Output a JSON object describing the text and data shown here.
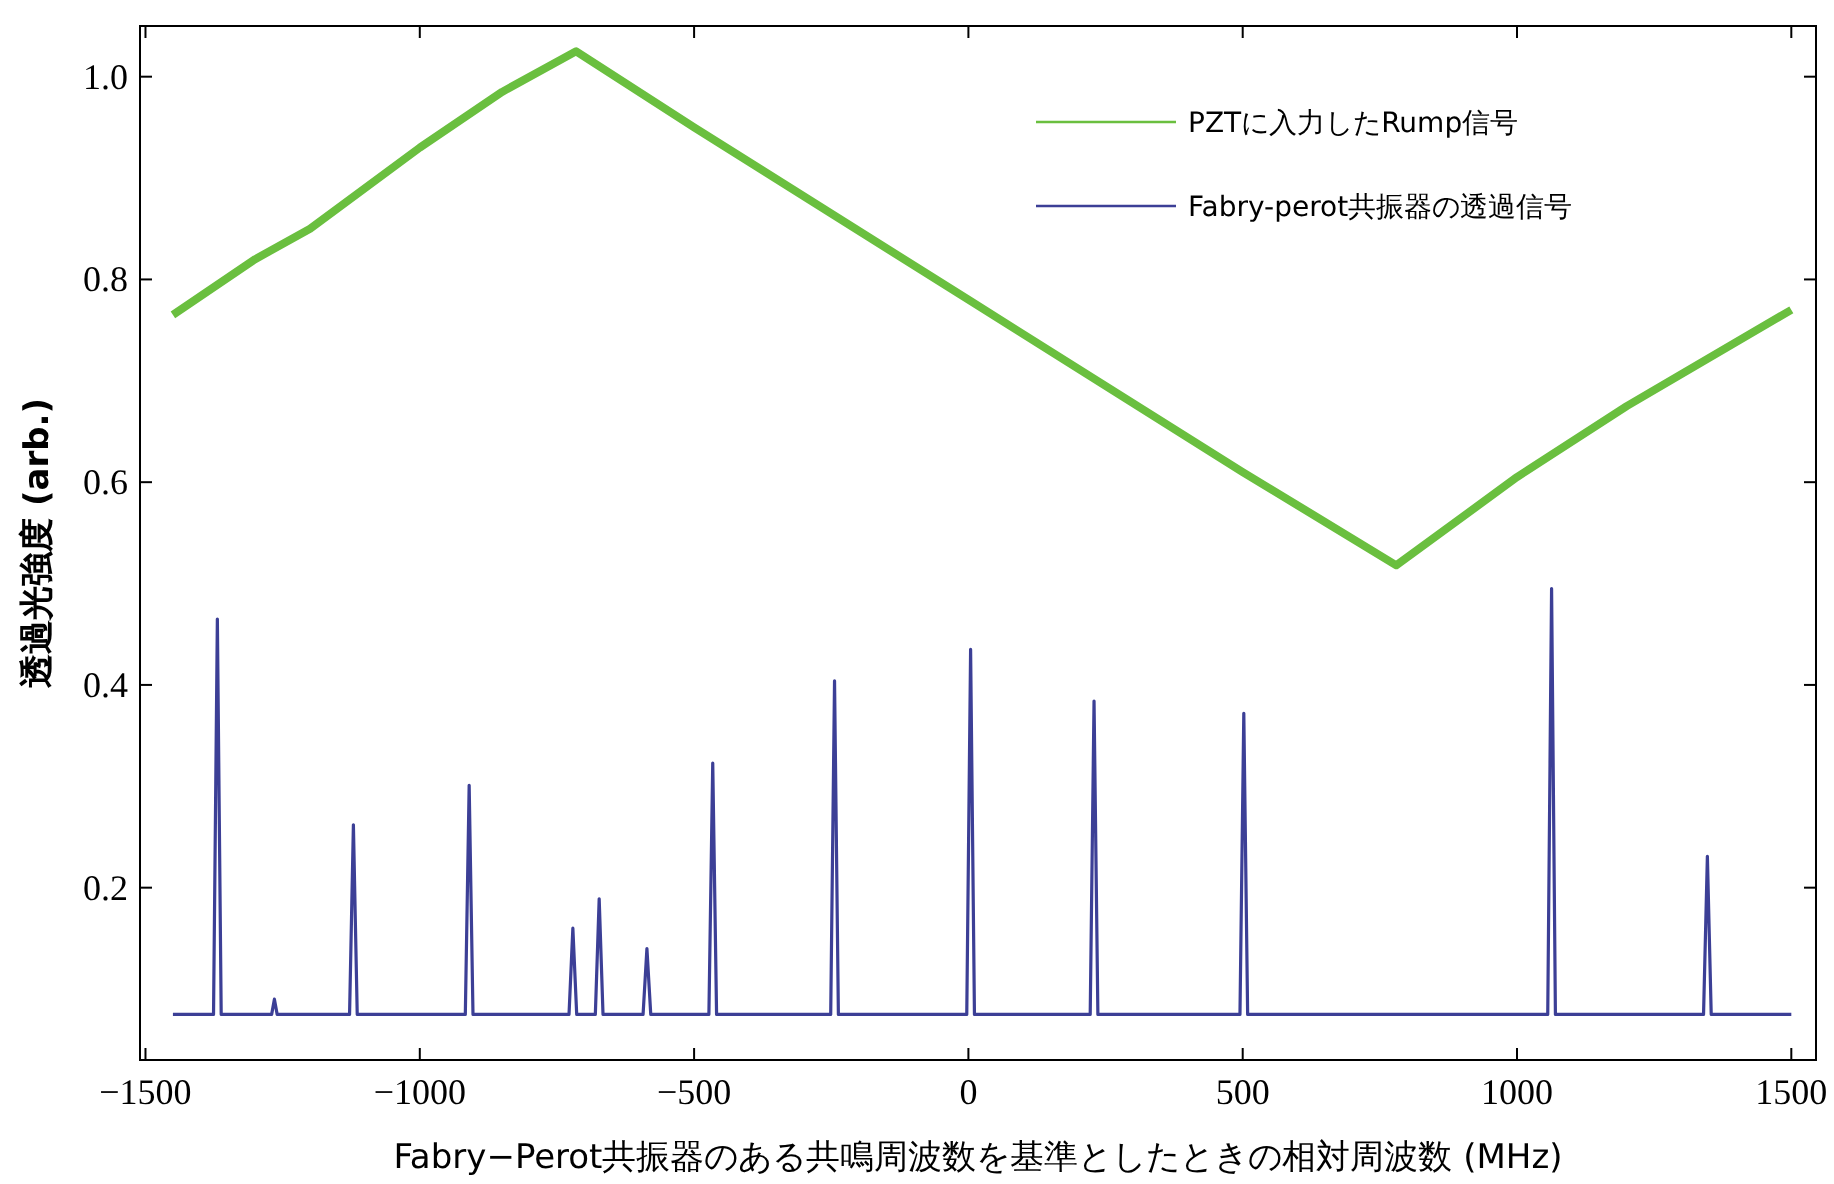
{
  "chart_data": {
    "type": "line",
    "xlabel": "Fabry−Perot共振器のある共鳴周波数を基準としたときの相対周波数 (MHz)",
    "ylabel": "透過光強度 (arb.)",
    "xlim": [
      -1510,
      1545
    ],
    "ylim": [
      0.03,
      1.05
    ],
    "xticks": [
      {
        "value": -1500,
        "label": "−1500"
      },
      {
        "value": -1000,
        "label": "−1000"
      },
      {
        "value": -500,
        "label": "−500"
      },
      0,
      500,
      1000,
      1500
    ],
    "yticks": [
      0.2,
      0.4,
      0.6,
      0.8,
      {
        "value": 1.0,
        "label": "1.0"
      }
    ],
    "legend": "top right",
    "series": [
      {
        "name": "PZTに入力したRump信号",
        "color": "#6abf3f",
        "x": [
          -1450,
          -1300,
          -1200,
          -1000,
          -850,
          -715,
          -500,
          0,
          500,
          780,
          1000,
          1200,
          1500
        ],
        "values": [
          0.765,
          0.82,
          0.85,
          0.93,
          0.985,
          1.025,
          0.95,
          0.78,
          0.61,
          0.518,
          0.605,
          0.675,
          0.77
        ]
      },
      {
        "name": "Fabry-perot共振器の透過信号",
        "color": "#3c3f96",
        "x": [
          -1450,
          -1376,
          -1369,
          -1362,
          -1270,
          -1265,
          -1260,
          -1128,
          -1121,
          -1114,
          -917,
          -910,
          -903,
          -728,
          -721,
          -714,
          -680,
          -673,
          -666,
          -593,
          -586,
          -579,
          -473,
          -466,
          -459,
          -251,
          -244,
          -237,
          -3,
          4,
          11,
          222,
          229,
          236,
          495,
          502,
          509,
          1056,
          1063,
          1070,
          1340,
          1347,
          1354,
          1500
        ],
        "values": [
          0.075,
          0.075,
          0.465,
          0.075,
          0.075,
          0.09,
          0.075,
          0.075,
          0.262,
          0.075,
          0.075,
          0.301,
          0.075,
          0.075,
          0.16,
          0.075,
          0.075,
          0.189,
          0.075,
          0.075,
          0.14,
          0.075,
          0.075,
          0.323,
          0.075,
          0.075,
          0.404,
          0.075,
          0.075,
          0.435,
          0.075,
          0.075,
          0.384,
          0.075,
          0.075,
          0.372,
          0.075,
          0.075,
          0.495,
          0.075,
          0.075,
          0.231,
          0.075,
          0.075
        ]
      }
    ]
  }
}
